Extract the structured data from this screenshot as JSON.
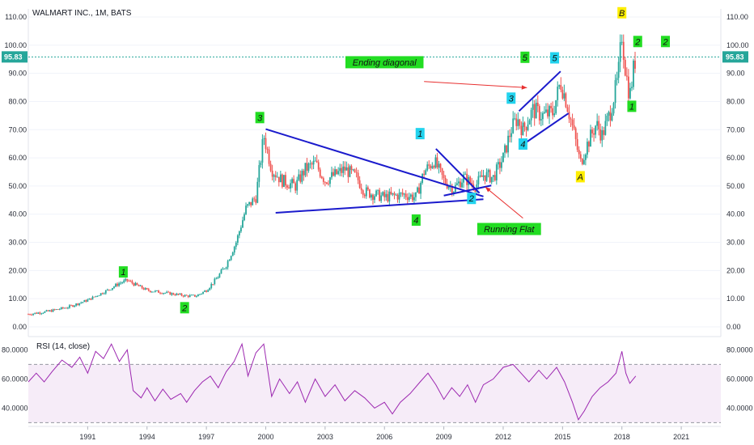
{
  "chart_data": [
    {
      "type": "candlestick",
      "title": "WALMART INC., 1M, BATS",
      "last_price": "95.83",
      "ylim": [
        0,
        110
      ],
      "y_ticks": [
        "110.00",
        "100.00",
        "90.00",
        "80.00",
        "70.00",
        "60.00",
        "50.00",
        "40.00",
        "30.00",
        "20.00",
        "10.00",
        "0.00"
      ],
      "x_ticks": [
        "1991",
        "1994",
        "1997",
        "2000",
        "2003",
        "2006",
        "2009",
        "2012",
        "2015",
        "2018",
        "2021"
      ],
      "price_path": [
        [
          1988.0,
          4.5
        ],
        [
          1989.0,
          5.5
        ],
        [
          1990.0,
          7.0
        ],
        [
          1991.0,
          9.5
        ],
        [
          1992.0,
          13.0
        ],
        [
          1992.6,
          15.5
        ],
        [
          1993.0,
          16.5
        ],
        [
          1993.4,
          15.0
        ],
        [
          1994.0,
          13.0
        ],
        [
          1995.0,
          12.0
        ],
        [
          1996.0,
          11.0
        ],
        [
          1996.5,
          11.0
        ],
        [
          1997.0,
          13.0
        ],
        [
          1997.5,
          17.0
        ],
        [
          1998.0,
          22.0
        ],
        [
          1998.5,
          30.0
        ],
        [
          1999.0,
          42.0
        ],
        [
          1999.5,
          46.0
        ],
        [
          1999.9,
          68.0
        ],
        [
          2000.3,
          56.0
        ],
        [
          2000.8,
          52.0
        ],
        [
          2001.5,
          50.0
        ],
        [
          2002.0,
          56.0
        ],
        [
          2002.5,
          58.0
        ],
        [
          2003.0,
          52.0
        ],
        [
          2003.5,
          54.0
        ],
        [
          2004.0,
          56.0
        ],
        [
          2004.6,
          53.0
        ],
        [
          2005.0,
          48.0
        ],
        [
          2006.0,
          46.0
        ],
        [
          2007.0,
          47.0
        ],
        [
          2007.6,
          46.0
        ],
        [
          2008.0,
          55.0
        ],
        [
          2008.5,
          59.0
        ],
        [
          2009.0,
          52.0
        ],
        [
          2009.5,
          49.0
        ],
        [
          2010.0,
          53.0
        ],
        [
          2010.6,
          50.0
        ],
        [
          2011.0,
          54.0
        ],
        [
          2011.5,
          53.0
        ],
        [
          2012.0,
          60.0
        ],
        [
          2012.4,
          70.0
        ],
        [
          2012.7,
          74.0
        ],
        [
          2013.0,
          70.0
        ],
        [
          2013.5,
          77.0
        ],
        [
          2014.0,
          75.0
        ],
        [
          2014.5,
          76.0
        ],
        [
          2014.9,
          87.0
        ],
        [
          2015.2,
          80.0
        ],
        [
          2015.6,
          68.0
        ],
        [
          2015.9,
          58.0
        ],
        [
          2016.2,
          64.0
        ],
        [
          2016.7,
          72.0
        ],
        [
          2017.0,
          68.0
        ],
        [
          2017.4,
          76.0
        ],
        [
          2017.8,
          88.0
        ],
        [
          2018.0,
          104.0
        ],
        [
          2018.2,
          90.0
        ],
        [
          2018.4,
          82.0
        ],
        [
          2018.6,
          92.0
        ],
        [
          2018.7,
          95.8
        ]
      ],
      "annotations": [
        {
          "text": "1",
          "x": 1992.8,
          "y": 19.5,
          "color": "#22dd22"
        },
        {
          "text": "2",
          "x": 1995.9,
          "y": 6.8,
          "color": "#22dd22"
        },
        {
          "text": "3",
          "x": 1999.7,
          "y": 74.3,
          "color": "#22dd22"
        },
        {
          "text": "4",
          "x": 2007.6,
          "y": 37.9,
          "color": "#22dd22"
        },
        {
          "text": "1",
          "x": 2007.8,
          "y": 68.6,
          "color": "#22d3ee"
        },
        {
          "text": "2",
          "x": 2010.4,
          "y": 45.6,
          "color": "#22d3ee"
        },
        {
          "text": "3",
          "x": 2012.4,
          "y": 81.2,
          "color": "#22d3ee"
        },
        {
          "text": "4",
          "x": 2013.0,
          "y": 64.9,
          "color": "#22d3ee"
        },
        {
          "text": "5",
          "x": 2014.6,
          "y": 95.5,
          "color": "#22d3ee"
        },
        {
          "text": "5",
          "x": 2013.1,
          "y": 95.7,
          "color": "#22dd22"
        },
        {
          "text": "A",
          "x": 2015.9,
          "y": 53.3,
          "color": "#ffee00"
        },
        {
          "text": "B",
          "x": 2018.0,
          "y": 111.5,
          "color": "#ffee00"
        },
        {
          "text": "1",
          "x": 2018.5,
          "y": 78.3,
          "color": "#22dd22"
        },
        {
          "text": "2",
          "x": 2018.8,
          "y": 101.3,
          "color": "#22dd22"
        },
        {
          "text": "2",
          "x": 2020.2,
          "y": 101.3,
          "color": "#22dd22"
        }
      ],
      "text_labels": [
        {
          "text": "Ending diagonal",
          "x": 2006.0,
          "y": 93.8
        },
        {
          "text": "Running Flat",
          "x": 2012.3,
          "y": 34.6
        }
      ],
      "trendlines": [
        {
          "from": [
            2000.0,
            70.2
          ],
          "to": [
            2011.0,
            46.3
          ],
          "color": "#1a1acc"
        },
        {
          "from": [
            2000.5,
            40.5
          ],
          "to": [
            2011.0,
            45.3
          ],
          "color": "#1a1acc"
        },
        {
          "from": [
            2008.6,
            63.2
          ],
          "to": [
            2010.8,
            47.5
          ],
          "color": "#1a1acc"
        },
        {
          "from": [
            2009.0,
            46.6
          ],
          "to": [
            2011.4,
            50.2
          ],
          "color": "#1a1acc"
        },
        {
          "from": [
            2012.8,
            76.6
          ],
          "to": [
            2014.9,
            90.7
          ],
          "color": "#1a1acc"
        },
        {
          "from": [
            2013.2,
            65.7
          ],
          "to": [
            2015.3,
            75.8
          ],
          "color": "#1a1acc"
        }
      ],
      "arrows": [
        {
          "from": [
            2008.0,
            87.1
          ],
          "to": [
            2013.2,
            84.9
          ],
          "color": "#e83030"
        },
        {
          "from": [
            2013.0,
            38.6
          ],
          "to": [
            2011.1,
            49.6
          ],
          "color": "#e83030"
        }
      ]
    },
    {
      "type": "line",
      "title": "RSI (14, close)",
      "ylim": [
        28,
        88
      ],
      "y_ticks": [
        "80.0000",
        "60.0000",
        "40.0000"
      ],
      "bands": [
        70,
        30
      ],
      "line_color": "#9c27b0",
      "values": [
        [
          1988.0,
          58
        ],
        [
          1988.4,
          64
        ],
        [
          1988.8,
          58
        ],
        [
          1989.2,
          65
        ],
        [
          1989.7,
          73
        ],
        [
          1990.2,
          68
        ],
        [
          1990.6,
          75
        ],
        [
          1991.0,
          64
        ],
        [
          1991.4,
          79
        ],
        [
          1991.8,
          74
        ],
        [
          1992.2,
          84
        ],
        [
          1992.6,
          72
        ],
        [
          1993.0,
          80
        ],
        [
          1993.3,
          52
        ],
        [
          1993.7,
          47
        ],
        [
          1994.0,
          54
        ],
        [
          1994.4,
          45
        ],
        [
          1994.8,
          53
        ],
        [
          1995.2,
          46
        ],
        [
          1995.7,
          50
        ],
        [
          1996.0,
          44
        ],
        [
          1996.4,
          52
        ],
        [
          1996.8,
          58
        ],
        [
          1997.2,
          62
        ],
        [
          1997.6,
          54
        ],
        [
          1998.0,
          65
        ],
        [
          1998.4,
          72
        ],
        [
          1998.8,
          84
        ],
        [
          1999.1,
          62
        ],
        [
          1999.5,
          78
        ],
        [
          1999.9,
          84
        ],
        [
          2000.3,
          48
        ],
        [
          2000.7,
          60
        ],
        [
          2001.2,
          50
        ],
        [
          2001.6,
          58
        ],
        [
          2002.0,
          44
        ],
        [
          2002.5,
          60
        ],
        [
          2003.0,
          48
        ],
        [
          2003.5,
          56
        ],
        [
          2004.0,
          45
        ],
        [
          2004.5,
          52
        ],
        [
          2005.0,
          47
        ],
        [
          2005.5,
          40
        ],
        [
          2006.0,
          44
        ],
        [
          2006.4,
          36
        ],
        [
          2006.8,
          44
        ],
        [
          2007.3,
          50
        ],
        [
          2007.8,
          58
        ],
        [
          2008.2,
          64
        ],
        [
          2008.6,
          56
        ],
        [
          2009.0,
          46
        ],
        [
          2009.4,
          54
        ],
        [
          2009.8,
          48
        ],
        [
          2010.2,
          56
        ],
        [
          2010.6,
          44
        ],
        [
          2011.0,
          56
        ],
        [
          2011.5,
          60
        ],
        [
          2012.0,
          68
        ],
        [
          2012.5,
          70
        ],
        [
          2012.9,
          64
        ],
        [
          2013.3,
          58
        ],
        [
          2013.8,
          66
        ],
        [
          2014.2,
          60
        ],
        [
          2014.7,
          68
        ],
        [
          2015.1,
          58
        ],
        [
          2015.5,
          44
        ],
        [
          2015.8,
          32
        ],
        [
          2016.1,
          38
        ],
        [
          2016.5,
          48
        ],
        [
          2016.9,
          54
        ],
        [
          2017.3,
          58
        ],
        [
          2017.7,
          64
        ],
        [
          2018.0,
          79
        ],
        [
          2018.2,
          64
        ],
        [
          2018.4,
          57
        ],
        [
          2018.7,
          62
        ]
      ]
    }
  ]
}
